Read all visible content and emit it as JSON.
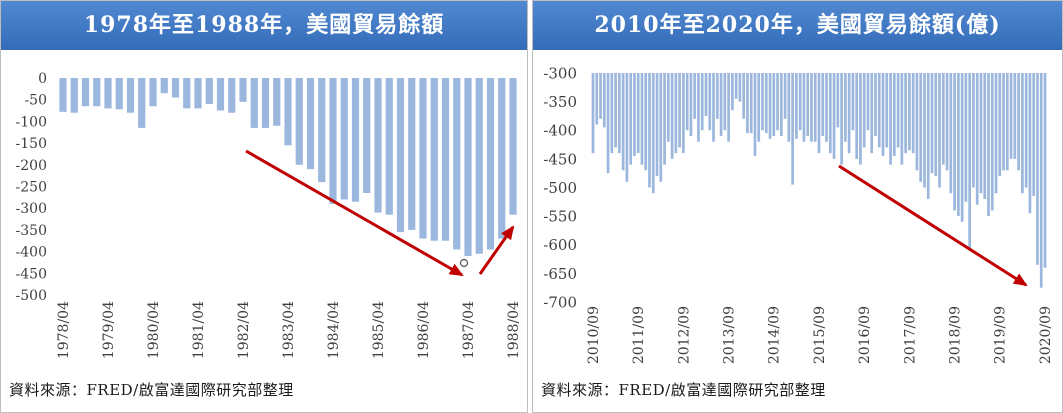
{
  "colors": {
    "header": "#3a78cc",
    "arrow": "#c00000"
  },
  "chart_data": [
    {
      "type": "bar",
      "title": "1978年至1988年，美國貿易餘額",
      "x_ticks": [
        "1978/04",
        "1979/04",
        "1980/04",
        "1981/04",
        "1982/04",
        "1983/04",
        "1984/04",
        "1985/04",
        "1986/04",
        "1987/04",
        "1988/04"
      ],
      "y_ticks": [
        0,
        -50,
        -100,
        -150,
        -200,
        -250,
        -300,
        -350,
        -400,
        -450,
        -500
      ],
      "ylim": [
        -500,
        0
      ],
      "grid": false,
      "legend": "none",
      "bar_color": "#9cb7dd",
      "values": [
        -78,
        -80,
        -65,
        -65,
        -70,
        -72,
        -80,
        -115,
        -65,
        -35,
        -45,
        -70,
        -70,
        -60,
        -75,
        -80,
        -55,
        -115,
        -115,
        -110,
        -155,
        -200,
        -210,
        -240,
        -290,
        -280,
        -285,
        -265,
        -310,
        -315,
        -355,
        -350,
        -370,
        -375,
        -375,
        -395,
        -410,
        -405,
        -395,
        -370,
        -315
      ],
      "source": "資料來源：FRED/啟富達國際研究部整理"
    },
    {
      "type": "bar",
      "title": "2010年至2020年，美國貿易餘額(億)",
      "x_ticks": [
        "2010/09",
        "2011/09",
        "2012/09",
        "2013/09",
        "2014/09",
        "2015/09",
        "2016/09",
        "2017/09",
        "2018/09",
        "2019/09",
        "2020/09"
      ],
      "y_ticks": [
        -300,
        -350,
        -400,
        -450,
        -500,
        -550,
        -600,
        -650,
        -700
      ],
      "ylim": [
        -700,
        -300
      ],
      "grid": false,
      "legend": "none",
      "bar_color": "#9cb7dd",
      "values": [
        -440,
        -390,
        -380,
        -395,
        -475,
        -440,
        -430,
        -440,
        -470,
        -490,
        -460,
        -445,
        -440,
        -460,
        -470,
        -500,
        -510,
        -480,
        -490,
        -460,
        -420,
        -450,
        -440,
        -430,
        -440,
        -400,
        -410,
        -380,
        -420,
        -400,
        -375,
        -400,
        -420,
        -380,
        -410,
        -400,
        -420,
        -365,
        -345,
        -350,
        -380,
        -405,
        -405,
        -445,
        -420,
        -400,
        -405,
        -415,
        -410,
        -400,
        -410,
        -380,
        -420,
        -495,
        -415,
        -400,
        -420,
        -410,
        -420,
        -420,
        -440,
        -410,
        -420,
        -440,
        -450,
        -395,
        -460,
        -420,
        -440,
        -400,
        -450,
        -460,
        -430,
        -400,
        -440,
        -410,
        -430,
        -445,
        -430,
        -460,
        -445,
        -430,
        -460,
        -440,
        -435,
        -440,
        -470,
        -490,
        -500,
        -520,
        -475,
        -480,
        -500,
        -460,
        -470,
        -510,
        -540,
        -550,
        -560,
        -525,
        -610,
        -500,
        -530,
        -510,
        -520,
        -550,
        -540,
        -510,
        -480,
        -470,
        -470,
        -450,
        -450,
        -470,
        -510,
        -500,
        -545,
        -515,
        -635,
        -675,
        -640
      ],
      "source": "資料來源：FRED/啟富達國際研究部整理"
    }
  ]
}
